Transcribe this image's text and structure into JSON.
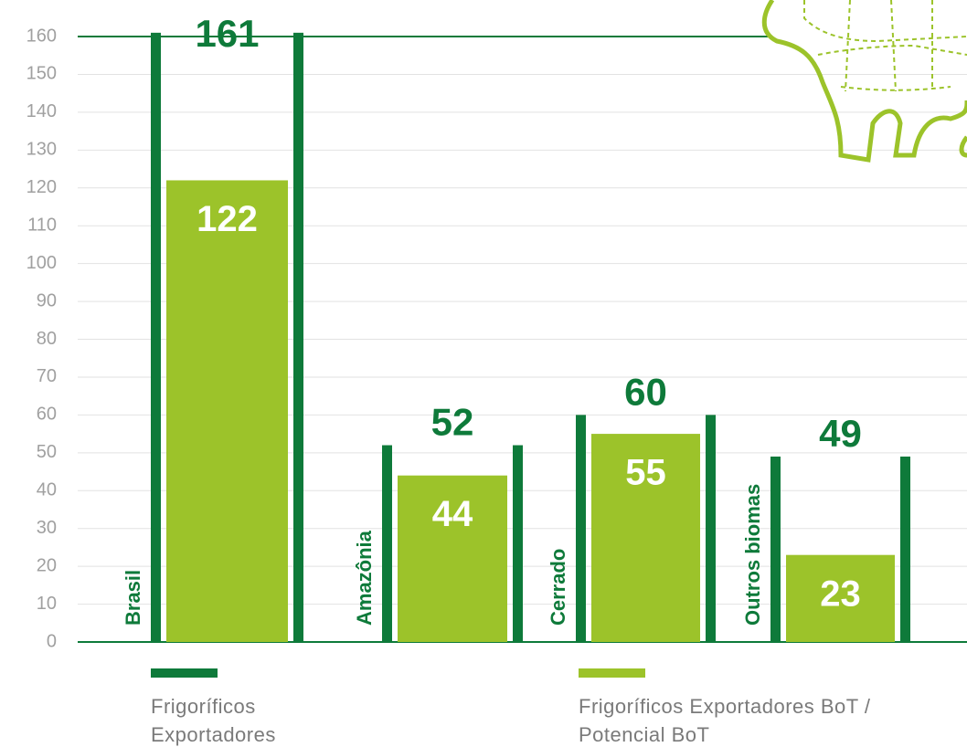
{
  "chart_data": {
    "type": "bar",
    "categories": [
      "Brasil",
      "Amazônia",
      "Cerrado",
      "Outros biomas"
    ],
    "series": [
      {
        "name": "Frigoríficos Exportadores",
        "color": "#0e7a3a",
        "values": [
          161,
          52,
          60,
          49
        ]
      },
      {
        "name": "Frigoríficos Exportadores BoT / Potencial BoT",
        "color": "#9cc32a",
        "values": [
          122,
          44,
          55,
          23
        ]
      }
    ],
    "ylim": [
      0,
      160
    ],
    "yticks": [
      0,
      10,
      20,
      30,
      40,
      50,
      60,
      70,
      80,
      90,
      100,
      110,
      120,
      130,
      140,
      150,
      160
    ],
    "grid": true
  }
}
